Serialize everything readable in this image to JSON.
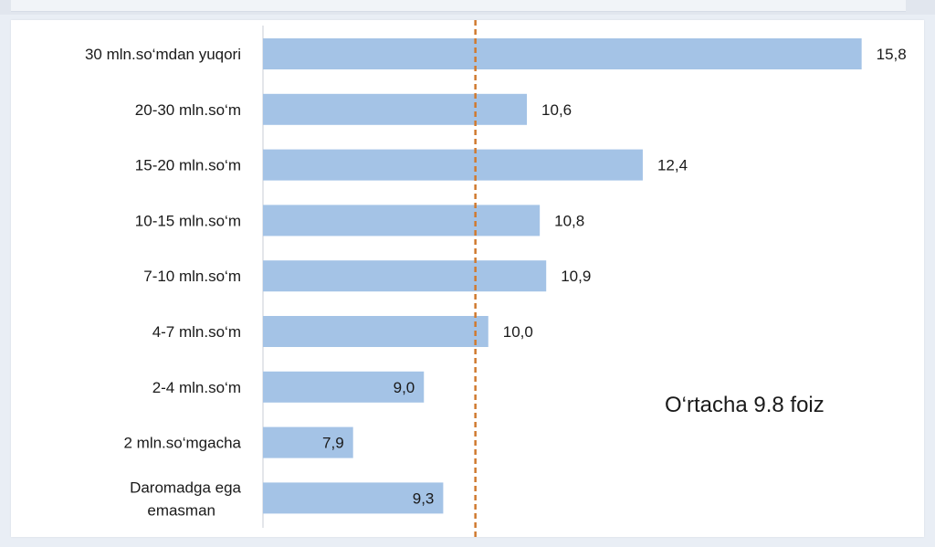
{
  "chart_data": {
    "type": "bar",
    "orientation": "horizontal",
    "categories": [
      "30 mln.so‘mdan yuqori",
      "20-30 mln.so‘m",
      "15-20 mln.so‘m",
      "10-15 mln.so‘m",
      "7-10 mln.so‘m",
      "4-7 mln.so‘m",
      "2-4 mln.so‘m",
      "2 mln.so‘mgacha",
      "Daromadga ega emasman"
    ],
    "values": [
      15.8,
      10.6,
      12.4,
      10.8,
      10.9,
      10.0,
      9.0,
      7.9,
      9.3
    ],
    "value_labels": [
      "15,8",
      "10,6",
      "12,4",
      "10,8",
      "10,9",
      "10,0",
      "9,0",
      "7,9",
      "9,3"
    ],
    "reference_line": {
      "value": 9.8,
      "label": "O‘rtacha 9.8 foiz"
    },
    "xlim": [
      6.5,
      16.5
    ],
    "bar_color": "#a4c3e6",
    "reference_color": "#d07a2f",
    "grid": false
  }
}
